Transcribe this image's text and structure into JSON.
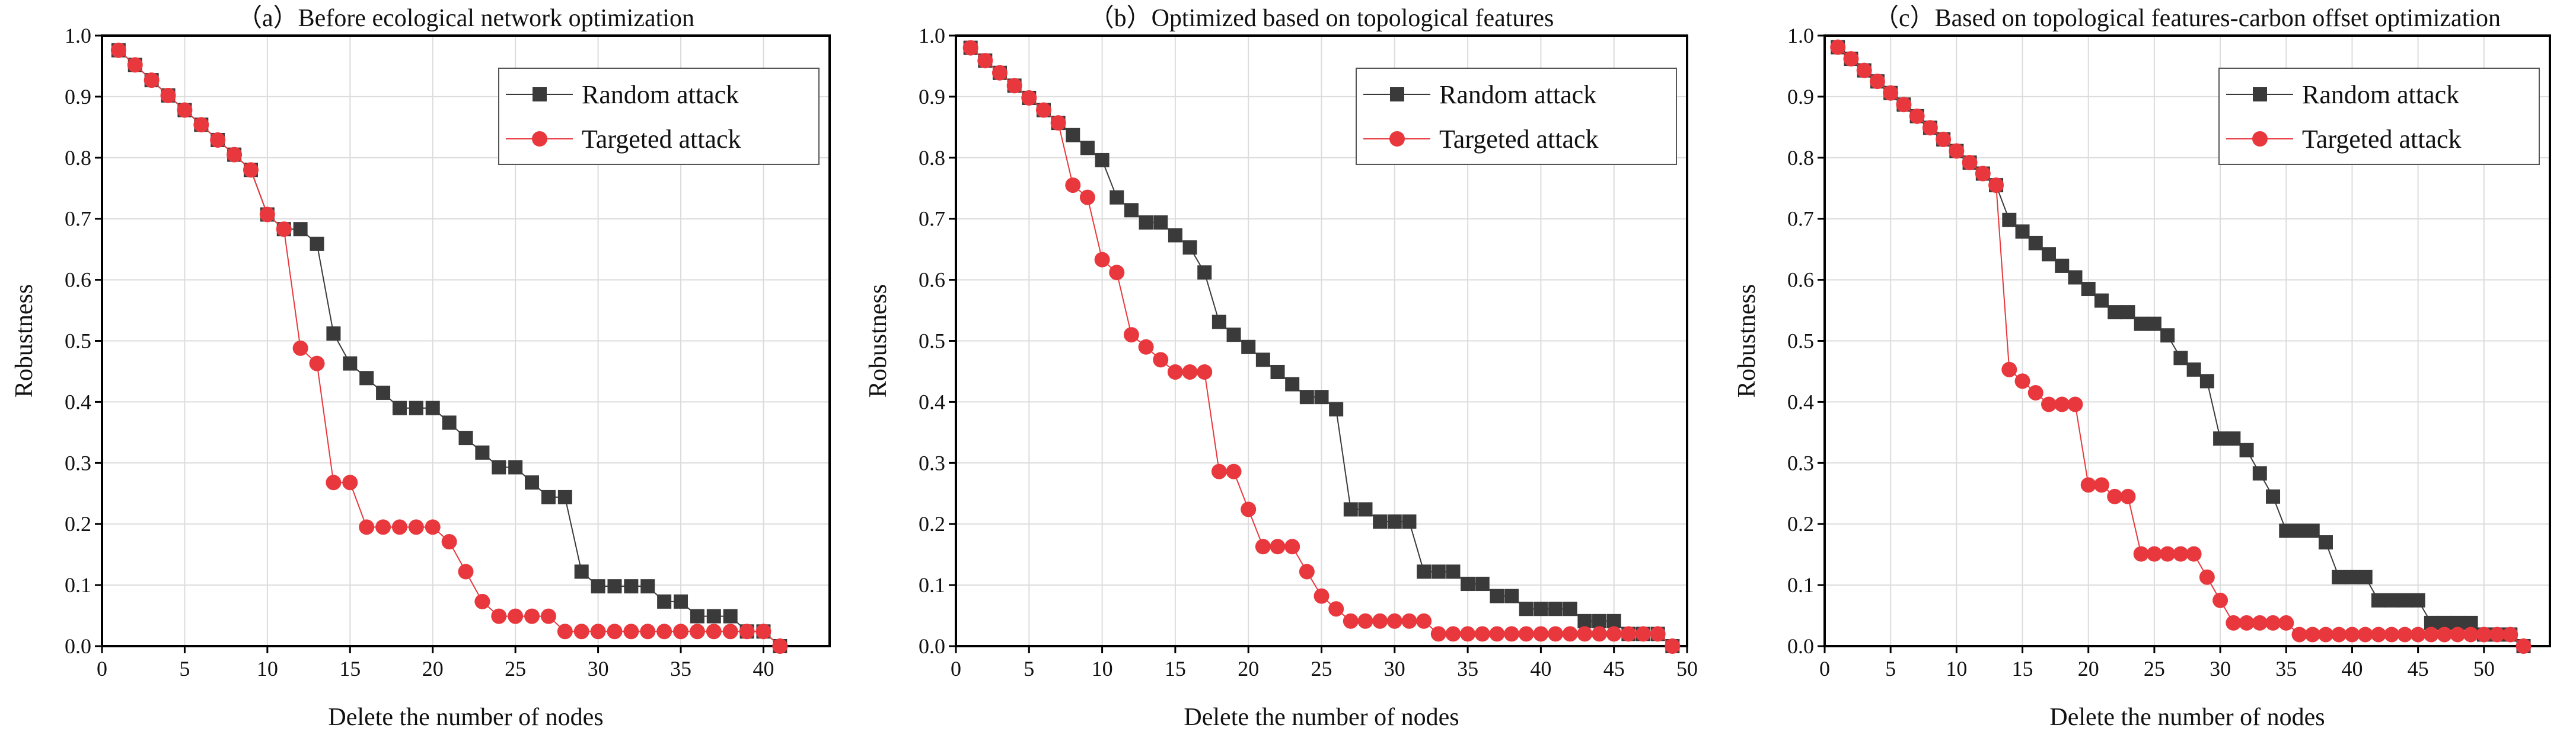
{
  "colors": {
    "random": "#3a3a3a",
    "targeted": "#e8383d",
    "grid": "#dcdcdc"
  },
  "chart_data": [
    {
      "type": "line",
      "title": "（a）Before ecological network optimization",
      "xlabel": "Delete the number of nodes",
      "ylabel": "Robustness",
      "xlim": [
        0,
        44
      ],
      "ylim": [
        0,
        1.0
      ],
      "xticks": [
        0,
        5,
        10,
        15,
        20,
        25,
        30,
        35,
        40
      ],
      "yticks": [
        "0.0",
        "0.1",
        "0.2",
        "0.3",
        "0.4",
        "0.5",
        "0.6",
        "0.7",
        "0.8",
        "0.9",
        "1.0"
      ],
      "grid": true,
      "legend_position": "top-right",
      "x": [
        1,
        2,
        3,
        4,
        5,
        6,
        7,
        8,
        9,
        10,
        11,
        12,
        13,
        14,
        15,
        16,
        17,
        18,
        19,
        20,
        21,
        22,
        23,
        24,
        25,
        26,
        27,
        28,
        29,
        30,
        31,
        32,
        33,
        34,
        35,
        36,
        37,
        38,
        39,
        40,
        41
      ],
      "series": [
        {
          "name": "Random attack",
          "values": [
            0.976,
            0.952,
            0.927,
            0.902,
            0.878,
            0.854,
            0.829,
            0.805,
            0.78,
            0.707,
            0.683,
            0.683,
            0.659,
            0.512,
            0.463,
            0.439,
            0.415,
            0.39,
            0.39,
            0.39,
            0.366,
            0.341,
            0.317,
            0.293,
            0.293,
            0.268,
            0.244,
            0.244,
            0.122,
            0.098,
            0.098,
            0.098,
            0.098,
            0.073,
            0.073,
            0.049,
            0.049,
            0.049,
            0.024,
            0.024,
            0.0
          ]
        },
        {
          "name": "Targeted attack",
          "values": [
            0.976,
            0.952,
            0.927,
            0.902,
            0.878,
            0.854,
            0.829,
            0.805,
            0.78,
            0.707,
            0.683,
            0.488,
            0.463,
            0.268,
            0.268,
            0.195,
            0.195,
            0.195,
            0.195,
            0.195,
            0.171,
            0.122,
            0.073,
            0.049,
            0.049,
            0.049,
            0.049,
            0.024,
            0.024,
            0.024,
            0.024,
            0.024,
            0.024,
            0.024,
            0.024,
            0.024,
            0.024,
            0.024,
            0.024,
            0.024,
            0.0
          ]
        }
      ]
    },
    {
      "type": "line",
      "title": "（b）Optimized based on topological features",
      "xlabel": "Delete the number of nodes",
      "ylabel": "Robustness",
      "xlim": [
        0,
        50
      ],
      "ylim": [
        0,
        1.0
      ],
      "xticks": [
        0,
        5,
        10,
        15,
        20,
        25,
        30,
        35,
        40,
        45,
        50
      ],
      "yticks": [
        "0.0",
        "0.1",
        "0.2",
        "0.3",
        "0.4",
        "0.5",
        "0.6",
        "0.7",
        "0.8",
        "0.9",
        "1.0"
      ],
      "grid": true,
      "legend_position": "top-right",
      "x": [
        1,
        2,
        3,
        4,
        5,
        6,
        7,
        8,
        9,
        10,
        11,
        12,
        13,
        14,
        15,
        16,
        17,
        18,
        19,
        20,
        21,
        22,
        23,
        24,
        25,
        26,
        27,
        28,
        29,
        30,
        31,
        32,
        33,
        34,
        35,
        36,
        37,
        38,
        39,
        40,
        41,
        42,
        43,
        44,
        45,
        46,
        47,
        48,
        49
      ],
      "series": [
        {
          "name": "Random attack",
          "values": [
            0.98,
            0.959,
            0.939,
            0.918,
            0.898,
            0.878,
            0.857,
            0.837,
            0.816,
            0.796,
            0.735,
            0.714,
            0.694,
            0.694,
            0.673,
            0.653,
            0.612,
            0.531,
            0.51,
            0.49,
            0.469,
            0.449,
            0.429,
            0.408,
            0.408,
            0.388,
            0.224,
            0.224,
            0.204,
            0.204,
            0.204,
            0.122,
            0.122,
            0.122,
            0.102,
            0.102,
            0.082,
            0.082,
            0.061,
            0.061,
            0.061,
            0.061,
            0.041,
            0.041,
            0.041,
            0.02,
            0.02,
            0.02,
            0.0
          ]
        },
        {
          "name": "Targeted attack",
          "values": [
            0.98,
            0.959,
            0.939,
            0.918,
            0.898,
            0.878,
            0.857,
            0.755,
            0.735,
            0.633,
            0.612,
            0.51,
            0.49,
            0.469,
            0.449,
            0.449,
            0.449,
            0.286,
            0.286,
            0.224,
            0.163,
            0.163,
            0.163,
            0.122,
            0.082,
            0.061,
            0.041,
            0.041,
            0.041,
            0.041,
            0.041,
            0.041,
            0.02,
            0.02,
            0.02,
            0.02,
            0.02,
            0.02,
            0.02,
            0.02,
            0.02,
            0.02,
            0.02,
            0.02,
            0.02,
            0.02,
            0.02,
            0.02,
            0.0
          ]
        }
      ]
    },
    {
      "type": "line",
      "title": "（c）Based on topological features-carbon offset optimization",
      "xlabel": "Delete the number of nodes",
      "ylabel": "Robustness",
      "xlim": [
        0,
        55
      ],
      "ylim": [
        0,
        1.0
      ],
      "xticks": [
        0,
        5,
        10,
        15,
        20,
        25,
        30,
        35,
        40,
        45,
        50
      ],
      "yticks": [
        "0.0",
        "0.1",
        "0.2",
        "0.3",
        "0.4",
        "0.5",
        "0.6",
        "0.7",
        "0.8",
        "0.9",
        "1.0"
      ],
      "grid": true,
      "legend_position": "top-right",
      "x": [
        1,
        2,
        3,
        4,
        5,
        6,
        7,
        8,
        9,
        10,
        11,
        12,
        13,
        14,
        15,
        16,
        17,
        18,
        19,
        20,
        21,
        22,
        23,
        24,
        25,
        26,
        27,
        28,
        29,
        30,
        31,
        32,
        33,
        34,
        35,
        36,
        37,
        38,
        39,
        40,
        41,
        42,
        43,
        44,
        45,
        46,
        47,
        48,
        49,
        50,
        51,
        52,
        53
      ],
      "series": [
        {
          "name": "Random attack",
          "values": [
            0.981,
            0.962,
            0.943,
            0.925,
            0.906,
            0.887,
            0.868,
            0.849,
            0.83,
            0.811,
            0.792,
            0.774,
            0.755,
            0.698,
            0.679,
            0.66,
            0.642,
            0.623,
            0.604,
            0.585,
            0.566,
            0.547,
            0.547,
            0.528,
            0.528,
            0.509,
            0.472,
            0.453,
            0.434,
            0.34,
            0.34,
            0.321,
            0.283,
            0.245,
            0.189,
            0.189,
            0.189,
            0.17,
            0.113,
            0.113,
            0.113,
            0.075,
            0.075,
            0.075,
            0.075,
            0.038,
            0.038,
            0.038,
            0.038,
            0.019,
            0.019,
            0.019,
            0.0
          ]
        },
        {
          "name": "Targeted attack",
          "values": [
            0.981,
            0.962,
            0.943,
            0.925,
            0.906,
            0.887,
            0.868,
            0.849,
            0.83,
            0.811,
            0.792,
            0.774,
            0.755,
            0.453,
            0.434,
            0.415,
            0.396,
            0.396,
            0.396,
            0.264,
            0.264,
            0.245,
            0.245,
            0.151,
            0.151,
            0.151,
            0.151,
            0.151,
            0.113,
            0.075,
            0.038,
            0.038,
            0.038,
            0.038,
            0.038,
            0.019,
            0.019,
            0.019,
            0.019,
            0.019,
            0.019,
            0.019,
            0.019,
            0.019,
            0.019,
            0.019,
            0.019,
            0.019,
            0.019,
            0.019,
            0.019,
            0.019,
            0.0
          ]
        }
      ]
    }
  ]
}
